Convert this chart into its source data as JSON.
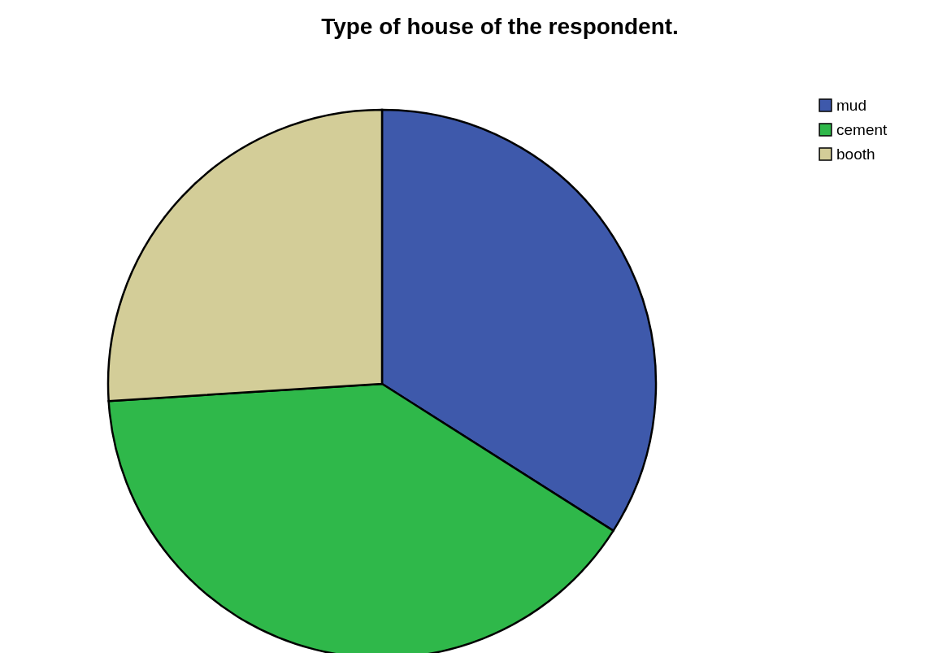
{
  "chart_data": {
    "type": "pie",
    "title": "Type of house of the respondent.",
    "categories": [
      "mud",
      "cement",
      "booth"
    ],
    "values": [
      34,
      40,
      26
    ],
    "colors": [
      "#3e59ab",
      "#2fb84a",
      "#d3cd98"
    ],
    "legend": "top right"
  }
}
